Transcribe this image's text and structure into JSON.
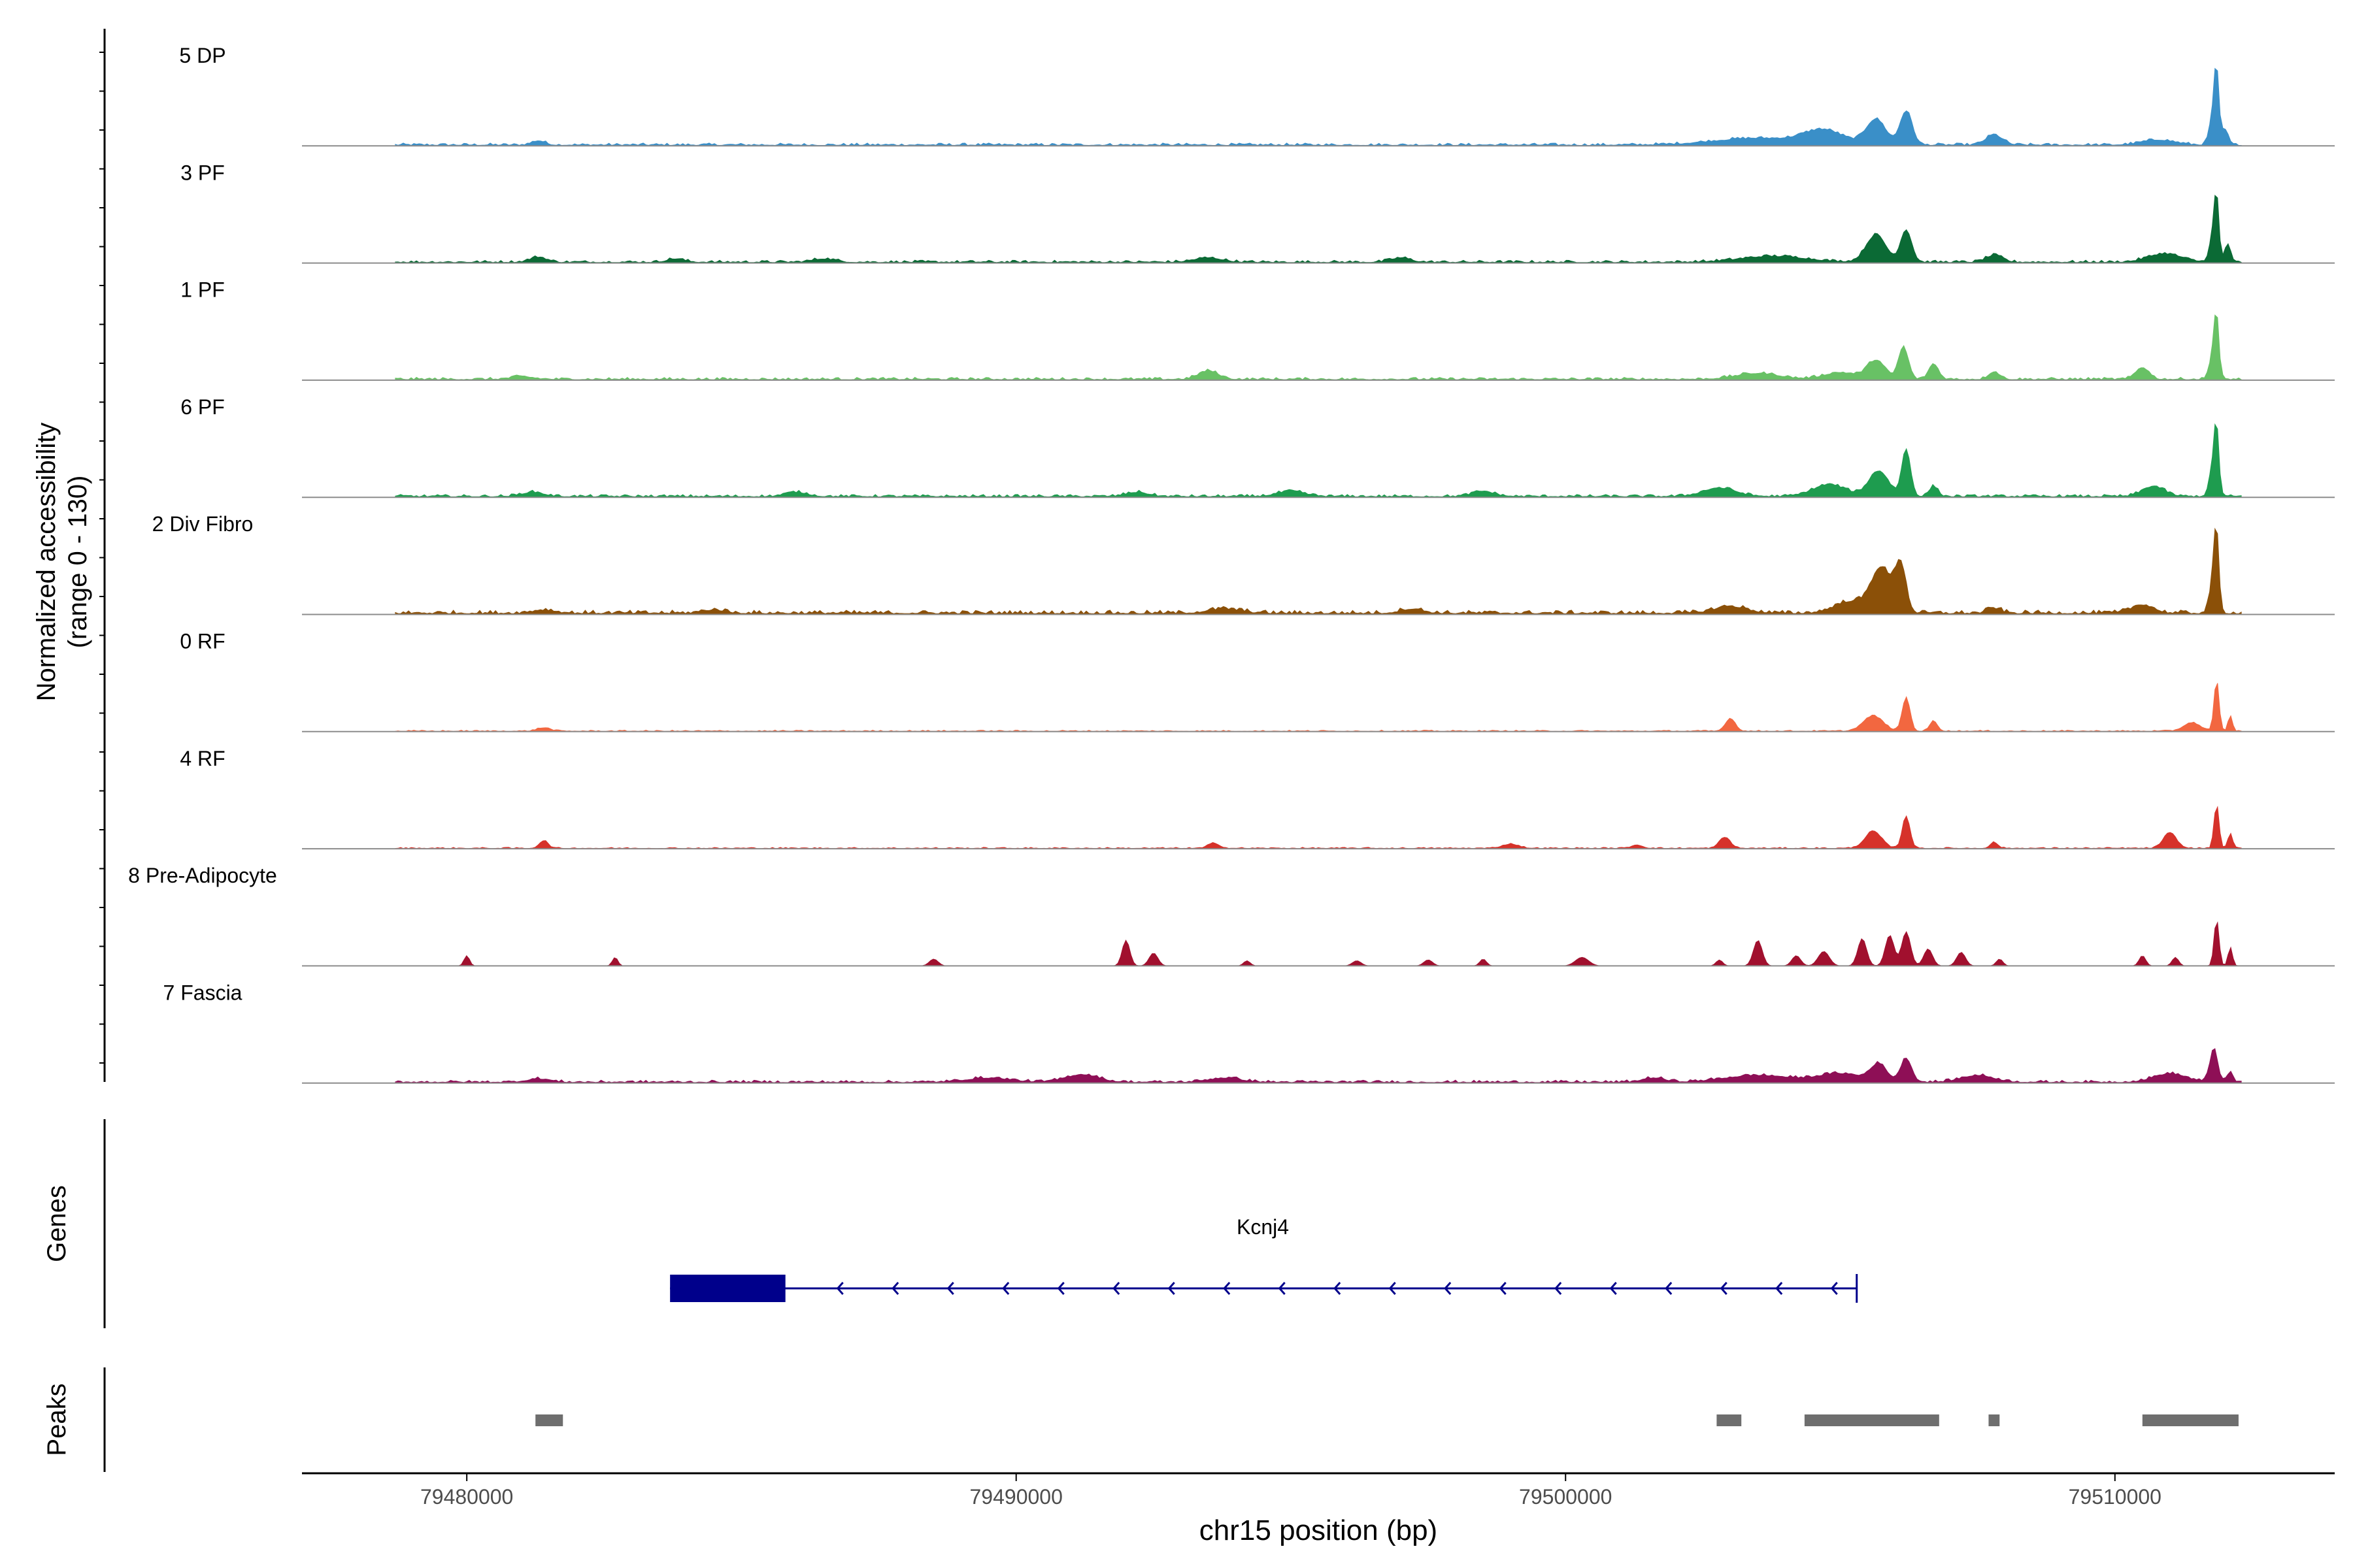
{
  "chart_data": {
    "type": "area",
    "title": "",
    "ylabel": "Normalized accessibility",
    "ylabel_range": "(range 0 - 130)",
    "ylim": [
      0,
      130
    ],
    "xlabel": "chr15 position (bp)",
    "xlim": [
      79477000,
      79514000
    ],
    "data_range": [
      79478700,
      79512300
    ],
    "x_ticks": [
      79480000,
      79490000,
      79500000,
      79510000
    ],
    "x_tick_labels": [
      "79480000",
      "79490000",
      "79500000",
      "79510000"
    ],
    "tracks": [
      {
        "name": "5 DP",
        "color": "#3a8fc8",
        "baseline": 2,
        "peaks": [
          [
            79481300,
            5,
            120
          ],
          [
            79503500,
            8,
            800
          ],
          [
            79504700,
            16,
            350
          ],
          [
            79505650,
            30,
            180
          ],
          [
            79506200,
            40,
            110
          ],
          [
            79507800,
            12,
            150
          ],
          [
            79510800,
            6,
            300
          ],
          [
            79511800,
            40,
            70
          ],
          [
            79511850,
            65,
            40
          ],
          [
            79512000,
            18,
            60
          ]
        ]
      },
      {
        "name": "3 PF",
        "color": "#0b6a35",
        "baseline": 2,
        "peaks": [
          [
            79481300,
            6,
            150
          ],
          [
            79483800,
            4,
            150
          ],
          [
            79486500,
            4,
            200
          ],
          [
            79493500,
            5,
            250
          ],
          [
            79497000,
            5,
            180
          ],
          [
            79503800,
            7,
            600
          ],
          [
            79505650,
            32,
            180
          ],
          [
            79506200,
            38,
            100
          ],
          [
            79507800,
            8,
            150
          ],
          [
            79510900,
            10,
            300
          ],
          [
            79511800,
            35,
            70
          ],
          [
            79511850,
            58,
            40
          ],
          [
            79512050,
            22,
            50
          ]
        ]
      },
      {
        "name": "1 PF",
        "color": "#68c165",
        "baseline": 2,
        "peaks": [
          [
            79481000,
            3,
            200
          ],
          [
            79493500,
            10,
            180
          ],
          [
            79503500,
            7,
            400
          ],
          [
            79505000,
            8,
            300
          ],
          [
            79505650,
            22,
            160
          ],
          [
            79506150,
            38,
            90
          ],
          [
            79506700,
            18,
            90
          ],
          [
            79507800,
            9,
            100
          ],
          [
            79510500,
            14,
            120
          ],
          [
            79511800,
            35,
            70
          ],
          [
            79511850,
            55,
            40
          ]
        ]
      },
      {
        "name": "6 PF",
        "color": "#1e9c4f",
        "baseline": 2,
        "peaks": [
          [
            79481200,
            5,
            200
          ],
          [
            79486000,
            5,
            200
          ],
          [
            79492200,
            5,
            200
          ],
          [
            79495000,
            6,
            250
          ],
          [
            79498500,
            6,
            200
          ],
          [
            79502800,
            10,
            300
          ],
          [
            79504800,
            14,
            300
          ],
          [
            79505700,
            30,
            180
          ],
          [
            79506200,
            55,
            80
          ],
          [
            79506700,
            12,
            80
          ],
          [
            79510700,
            12,
            200
          ],
          [
            79511800,
            40,
            70
          ],
          [
            79511850,
            60,
            40
          ]
        ]
      },
      {
        "name": "2 Div Fibro",
        "color": "#8b5008",
        "baseline": 3,
        "peaks": [
          [
            79481400,
            4,
            200
          ],
          [
            79484500,
            4,
            200
          ],
          [
            79493800,
            5,
            300
          ],
          [
            79497200,
            5,
            200
          ],
          [
            79503000,
            8,
            300
          ],
          [
            79505200,
            14,
            300
          ],
          [
            79505750,
            52,
            180
          ],
          [
            79506100,
            55,
            100
          ],
          [
            79507800,
            6,
            120
          ],
          [
            79510500,
            10,
            200
          ],
          [
            79511800,
            45,
            70
          ],
          [
            79511850,
            70,
            40
          ]
        ]
      },
      {
        "name": "0 RF",
        "color": "#f26740",
        "baseline": 1,
        "peaks": [
          [
            79481400,
            4,
            120
          ],
          [
            79503000,
            15,
            90
          ],
          [
            79505600,
            18,
            180
          ],
          [
            79506200,
            40,
            70
          ],
          [
            79506700,
            12,
            70
          ],
          [
            79511400,
            10,
            150
          ],
          [
            79511850,
            60,
            45
          ],
          [
            79512100,
            18,
            40
          ]
        ]
      },
      {
        "name": "4 RF",
        "color": "#d6322a",
        "baseline": 1,
        "peaks": [
          [
            79481400,
            9,
            80
          ],
          [
            79493600,
            6,
            100
          ],
          [
            79499000,
            5,
            150
          ],
          [
            79501300,
            4,
            100
          ],
          [
            79502900,
            13,
            100
          ],
          [
            79505600,
            20,
            150
          ],
          [
            79506200,
            38,
            70
          ],
          [
            79507800,
            7,
            70
          ],
          [
            79511000,
            18,
            120
          ],
          [
            79511850,
            52,
            45
          ],
          [
            79512100,
            18,
            40
          ]
        ]
      },
      {
        "name": "8 Pre-Adipocyte",
        "color": "#a1102e",
        "baseline": 0,
        "peaks": [
          [
            79480000,
            12,
            50
          ],
          [
            79482700,
            10,
            50
          ],
          [
            79488500,
            8,
            80
          ],
          [
            79492000,
            30,
            70
          ],
          [
            79492500,
            15,
            80
          ],
          [
            79494200,
            6,
            60
          ],
          [
            79496200,
            6,
            80
          ],
          [
            79497500,
            7,
            80
          ],
          [
            79498500,
            8,
            60
          ],
          [
            79500300,
            10,
            120
          ],
          [
            79502800,
            7,
            60
          ],
          [
            79503500,
            30,
            80
          ],
          [
            79504200,
            12,
            80
          ],
          [
            79504700,
            17,
            100
          ],
          [
            79505400,
            32,
            80
          ],
          [
            79505900,
            36,
            80
          ],
          [
            79506200,
            40,
            80
          ],
          [
            79506600,
            20,
            80
          ],
          [
            79507200,
            16,
            80
          ],
          [
            79507900,
            8,
            60
          ],
          [
            79510500,
            12,
            60
          ],
          [
            79511100,
            10,
            60
          ],
          [
            79511850,
            55,
            45
          ],
          [
            79512100,
            22,
            40
          ]
        ]
      },
      {
        "name": "7 Fascia",
        "color": "#8e0f56",
        "baseline": 2,
        "peaks": [
          [
            79481300,
            4,
            200
          ],
          [
            79489500,
            5,
            400
          ],
          [
            79491200,
            9,
            300
          ],
          [
            79493800,
            5,
            300
          ],
          [
            79501600,
            5,
            200
          ],
          [
            79503500,
            8,
            600
          ],
          [
            79505000,
            10,
            400
          ],
          [
            79505700,
            20,
            150
          ],
          [
            79506200,
            28,
            100
          ],
          [
            79507500,
            8,
            300
          ],
          [
            79511000,
            10,
            300
          ],
          [
            79511800,
            40,
            70
          ],
          [
            79512100,
            12,
            50
          ]
        ]
      }
    ],
    "genes": {
      "axis_label": "Genes",
      "name": "Kcnj4",
      "strand": "-",
      "start": 79483700,
      "end": 79505300,
      "exon": [
        79483700,
        79485800
      ]
    },
    "peaks_track": {
      "axis_label": "Peaks",
      "color": "#6e6e6e",
      "regions": [
        [
          79481250,
          79481750
        ],
        [
          79502750,
          79503200
        ],
        [
          79504350,
          79506800
        ],
        [
          79507700,
          79507900
        ],
        [
          79510500,
          79512250
        ]
      ]
    }
  }
}
